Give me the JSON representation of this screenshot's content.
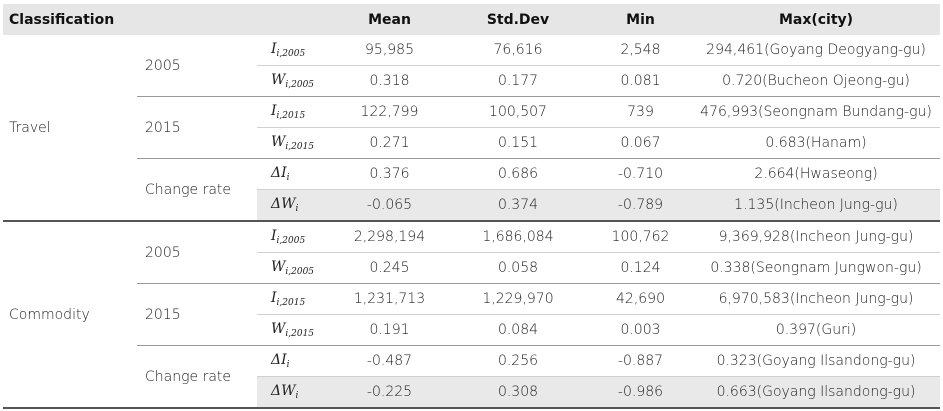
{
  "headers": {
    "classification": "Classification",
    "mean": "Mean",
    "stddev": "Std.Dev",
    "min": "Min",
    "max": "Max(city)"
  },
  "groups": [
    {
      "name": "Travel",
      "subgroups": [
        {
          "label": "2005",
          "rows": [
            {
              "sym": "I",
              "sub": "i,2005",
              "mean": "95,985",
              "std": "76,616",
              "min": "2,548",
              "max": "294,461(Goyang Deogyang-gu)"
            },
            {
              "sym": "W",
              "sub": "i,2005",
              "mean": "0.318",
              "std": "0.177",
              "min": "0.081",
              "max": "0.720(Bucheon Ojeong-gu)"
            }
          ]
        },
        {
          "label": "2015",
          "rows": [
            {
              "sym": "I",
              "sub": "i,2015",
              "mean": "122,799",
              "std": "100,507",
              "min": "739",
              "max": "476,993(Seongnam Bundang-gu)"
            },
            {
              "sym": "W",
              "sub": "i,2015",
              "mean": "0.271",
              "std": "0.151",
              "min": "0.067",
              "max": "0.683(Hanam)"
            }
          ]
        },
        {
          "label": "Change rate",
          "rows": [
            {
              "sym": "ΔI",
              "sub": "i",
              "mean": "0.376",
              "std": "0.686",
              "min": "-0.710",
              "max": "2.664(Hwaseong)"
            },
            {
              "sym": "ΔW",
              "sub": "i",
              "mean": "-0.065",
              "std": "0.374",
              "min": "-0.789",
              "max": "1.135(Incheon Jung-gu)"
            }
          ]
        }
      ]
    },
    {
      "name": "Commodity",
      "subgroups": [
        {
          "label": "2005",
          "rows": [
            {
              "sym": "I",
              "sub": "i,2005",
              "mean": "2,298,194",
              "std": "1,686,084",
              "min": "100,762",
              "max": "9,369,928(Incheon Jung-gu)"
            },
            {
              "sym": "W",
              "sub": "i,2005",
              "mean": "0.245",
              "std": "0.058",
              "min": "0.124",
              "max": "0.338(Seongnam Jungwon-gu)"
            }
          ]
        },
        {
          "label": "2015",
          "rows": [
            {
              "sym": "I",
              "sub": "i,2015",
              "mean": "1,231,713",
              "std": "1,229,970",
              "min": "42,690",
              "max": "6,970,583(Incheon Jung-gu)"
            },
            {
              "sym": "W",
              "sub": "i,2015",
              "mean": "0.191",
              "std": "0.084",
              "min": "0.003",
              "max": "0.397(Guri)"
            }
          ]
        },
        {
          "label": "Change rate",
          "rows": [
            {
              "sym": "ΔI",
              "sub": "i",
              "mean": "-0.487",
              "std": "0.256",
              "min": "-0.887",
              "max": "0.323(Goyang Ilsandong-gu)"
            },
            {
              "sym": "ΔW",
              "sub": "i",
              "mean": "-0.225",
              "std": "0.308",
              "min": "-0.986",
              "max": "0.663(Goyang Ilsandong-gu)"
            }
          ]
        }
      ]
    }
  ]
}
